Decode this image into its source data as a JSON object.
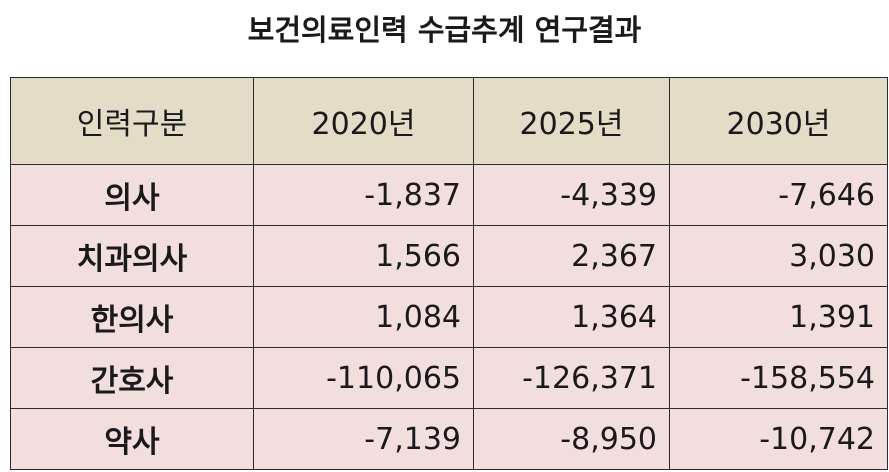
{
  "title": "보건의료인력 수급추계 연구결과",
  "table": {
    "headers": [
      "인력구분",
      "2020년",
      "2025년",
      "2030년"
    ],
    "rows": [
      {
        "label": "의사",
        "values": [
          "-1,837",
          "-4,339",
          "-7,646"
        ]
      },
      {
        "label": "치과의사",
        "values": [
          "1,566",
          "2,367",
          "3,030"
        ]
      },
      {
        "label": "한의사",
        "values": [
          "1,084",
          "1,364",
          "1,391"
        ]
      },
      {
        "label": "간호사",
        "values": [
          "-110,065",
          "-126,371",
          "-158,554"
        ]
      },
      {
        "label": "약사",
        "values": [
          "-7,139",
          "-8,950",
          "-10,742"
        ]
      }
    ]
  },
  "colors": {
    "header_bg": "#e3dcc6",
    "row_bg": "#f3dede",
    "border": "#2b2b2b"
  }
}
